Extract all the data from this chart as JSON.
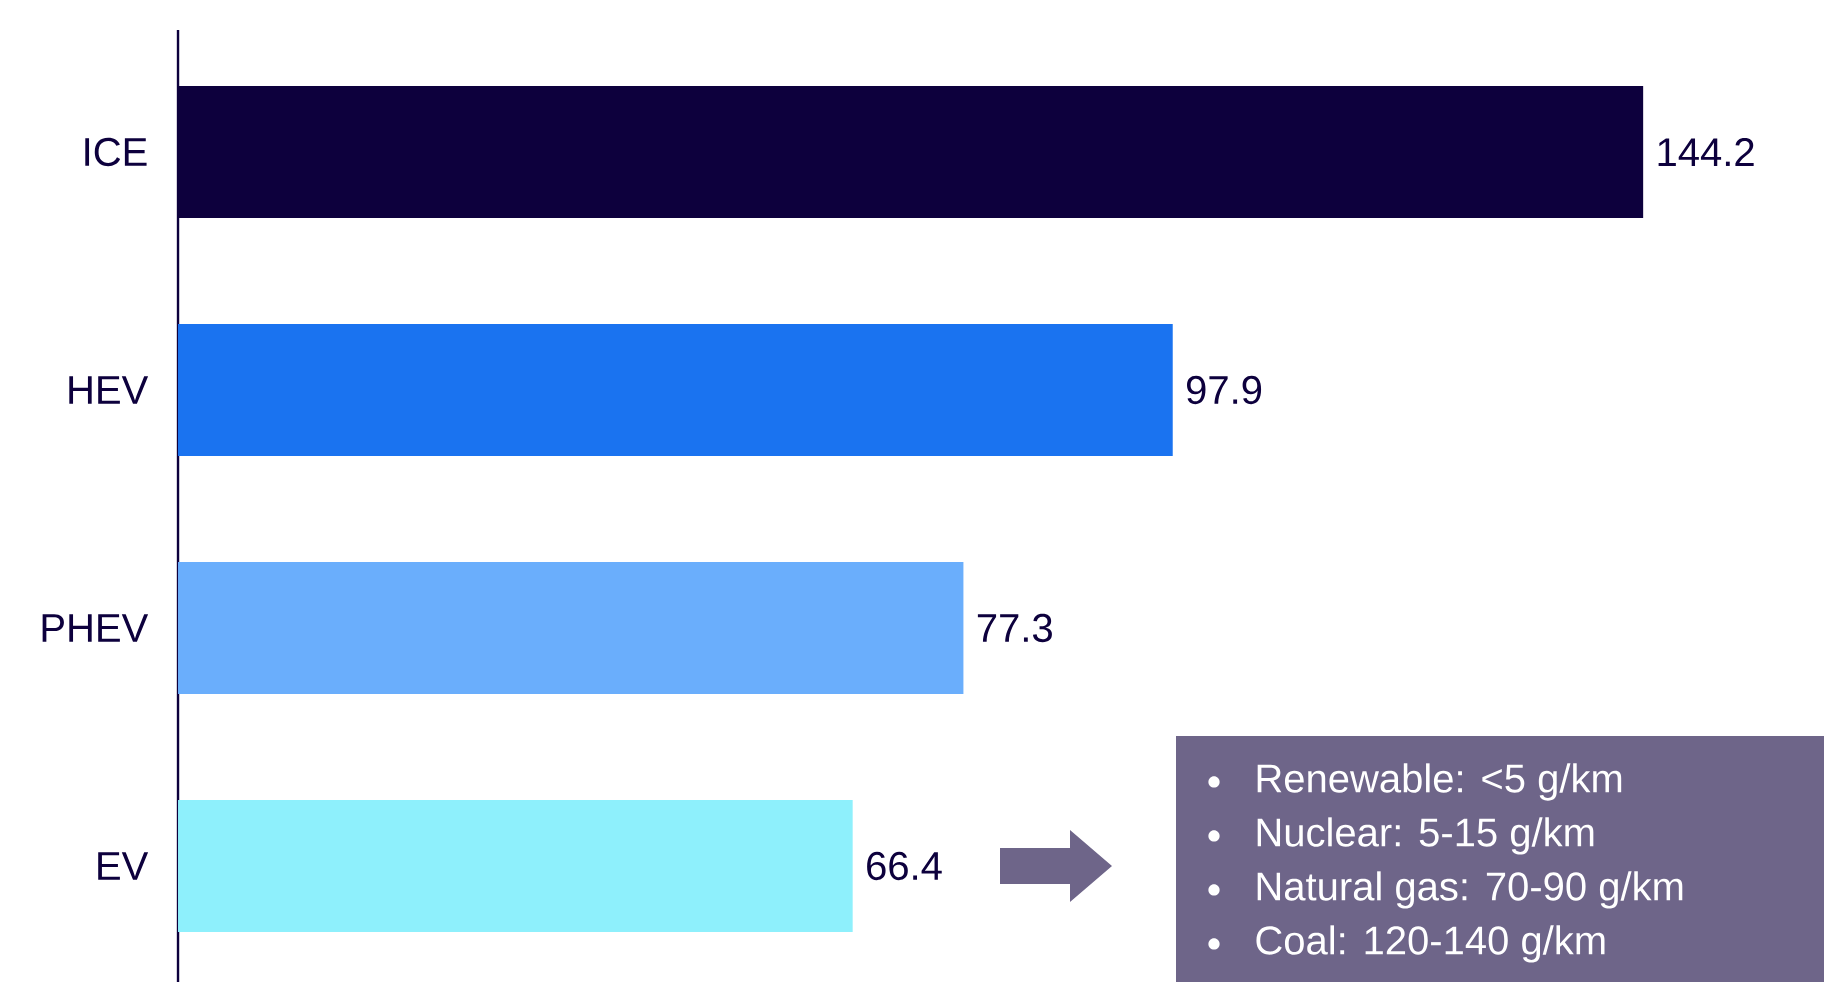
{
  "chart_data": {
    "type": "bar",
    "orientation": "horizontal",
    "categories": [
      "ICE",
      "HEV",
      "PHEV",
      "EV"
    ],
    "values": [
      144.2,
      97.9,
      77.3,
      66.4
    ],
    "colors": [
      "#0d003d",
      "#1a73f0",
      "#6aaefc",
      "#8ef0fc"
    ],
    "xlim": [
      0,
      162
    ],
    "data_labels": true,
    "annotations": [
      "Renewable: <5 g/km",
      "Nuclear: 5-15 g/km",
      "Natural gas: 70-90 g/km",
      "Coal: 120-140 g/km"
    ]
  }
}
